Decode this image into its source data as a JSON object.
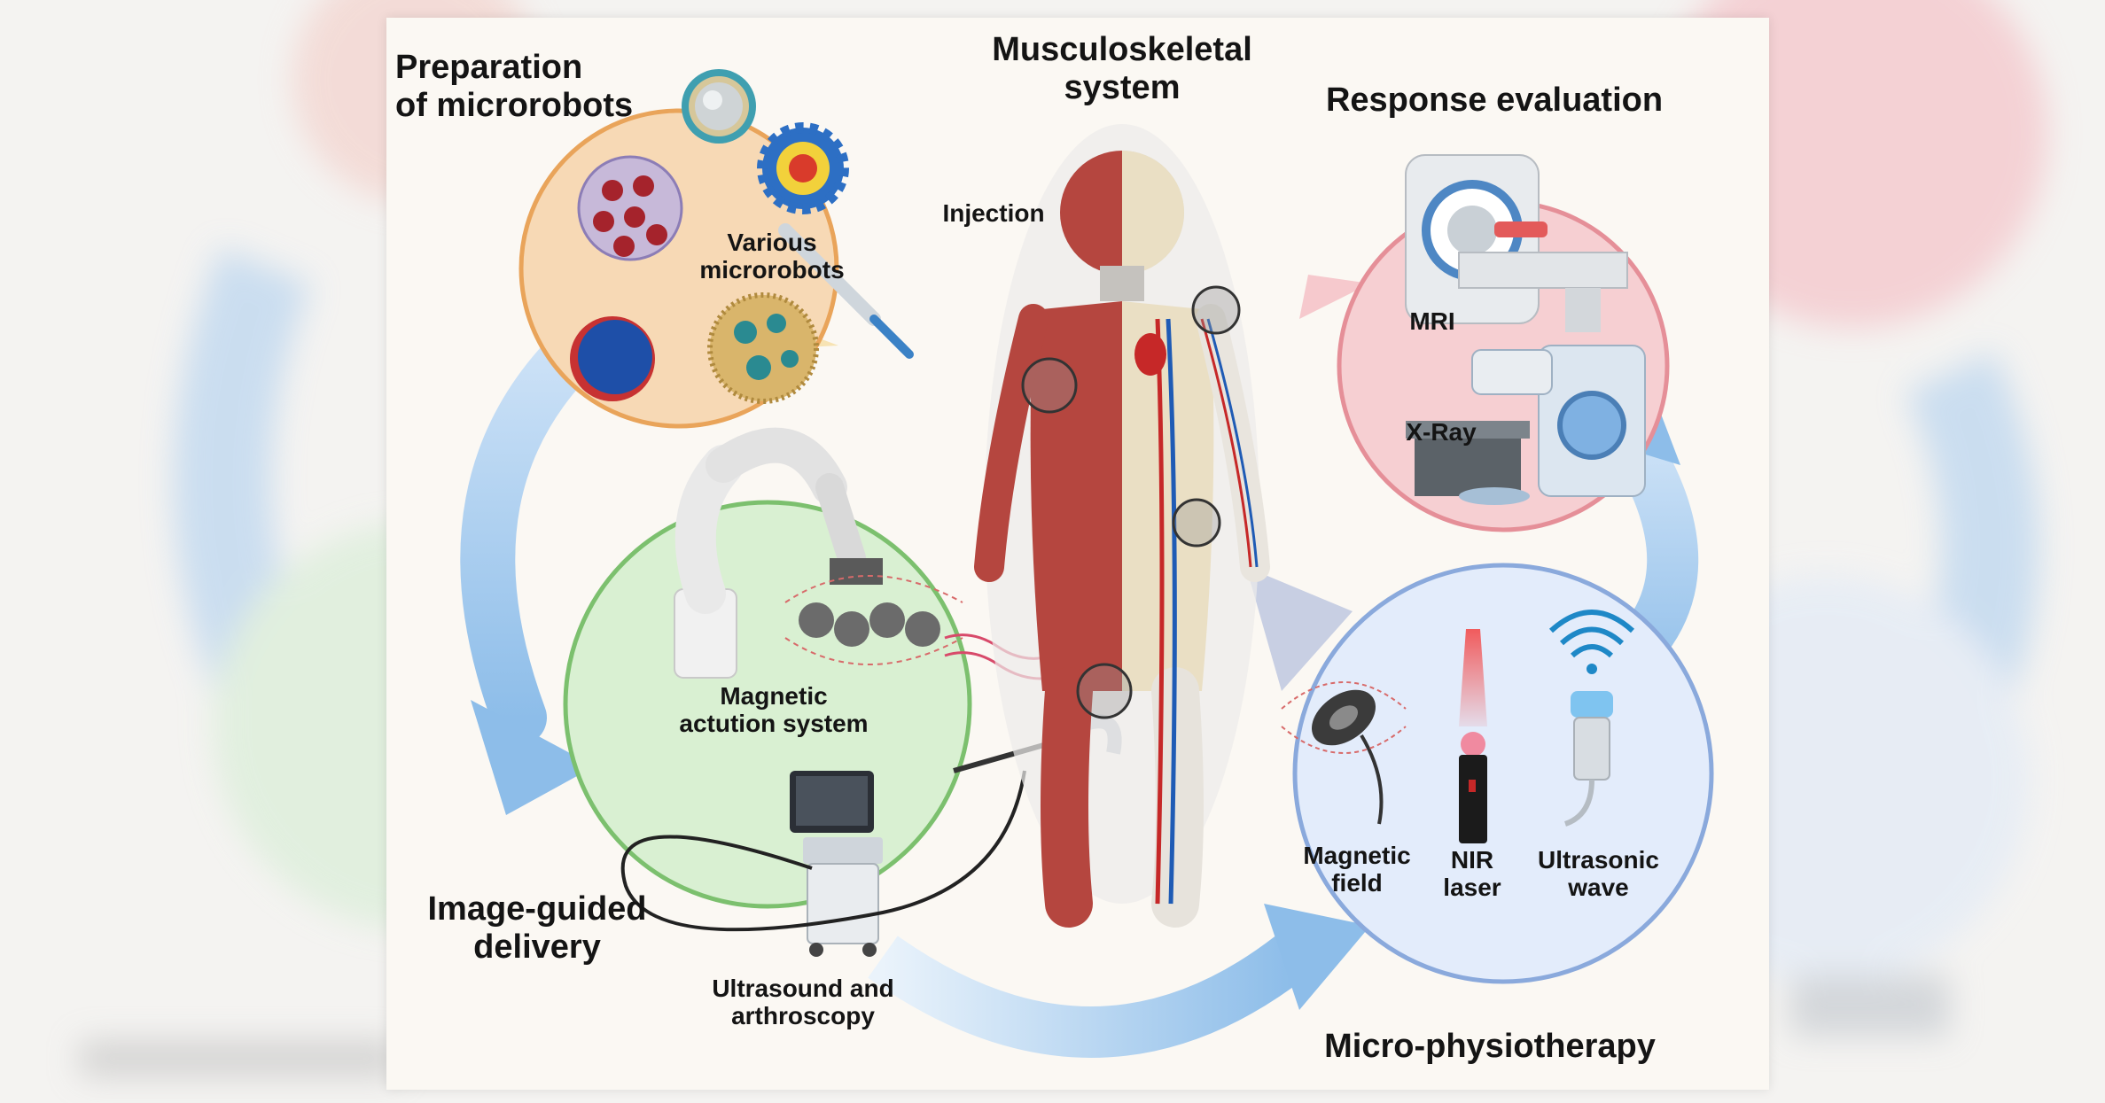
{
  "labels": {
    "preparation": [
      "Preparation",
      "of microrobots"
    ],
    "musculoskeletal": [
      "Musculoskeletal",
      "system"
    ],
    "response": "Response evaluation",
    "injection": "Injection",
    "various": [
      "Various",
      "microrobots"
    ],
    "mri": "MRI",
    "xray": "X-Ray",
    "magnetic_actution": [
      "Magnetic",
      "actution system"
    ],
    "image_guided": [
      "Image-guided",
      "delivery"
    ],
    "ultrasound_arthroscopy": [
      "Ultrasound and",
      "arthroscopy"
    ],
    "magnetic_field": [
      "Magnetic",
      "field"
    ],
    "nir_laser": [
      "NIR",
      "laser"
    ],
    "ultrasonic_wave": [
      "Ultrasonic",
      "wave"
    ],
    "micro_physiotherapy": "Micro-physiotherapy"
  },
  "colors": {
    "orange_circle": "#f7d9b5",
    "orange_border": "#e9a45a",
    "pink_circle": "#f6cfd2",
    "pink_border": "#e58f98",
    "green_circle": "#d9f0d2",
    "green_border": "#7cc06e",
    "blue_circle": "#e3ecfb",
    "blue_border": "#8aa9dc",
    "arrow_blue": "#a9ccef",
    "muscle": "#b5463f",
    "bone": "#eadfc4"
  }
}
